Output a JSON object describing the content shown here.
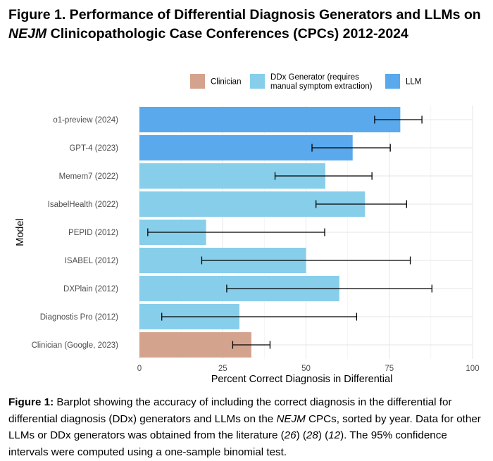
{
  "figure_title": {
    "prefix": "Figure 1. Performance of Differential Diagnosis Generators and LLMs on",
    "italic": "NEJM",
    "suffix": " Clinicopathologic Case Conferences (CPCs) 2012-2024"
  },
  "caption": {
    "label": "Figure 1:",
    "part1": " Barplot showing the accuracy of including the correct diagnosis in the differential for differential diagnosis (DDx) generators and LLMs on the ",
    "italic": "NEJM",
    "part2": " CPCs, sorted by year. Data for other LLMs or DDx generators was obtained from the literature (",
    "ref1": "26",
    "part3": ") (",
    "ref2": "28",
    "part4": ") (",
    "ref3": "12",
    "part5": "). The 95% confidence intervals were computed using a one-sample binomial test."
  },
  "colors": {
    "Clinician": "#d4a38e",
    "DDx": "#87ceeb",
    "LLM": "#59a9ec",
    "grid": "#e6e6e6",
    "text": "#4d4d4d"
  },
  "chart_data": {
    "type": "bar",
    "orientation": "horizontal",
    "xlabel": "Percent Correct Diagnosis in Differential",
    "ylabel": "Model",
    "xlim": [
      0,
      100
    ],
    "xticks": [
      0,
      25,
      50,
      75,
      100
    ],
    "legend": {
      "position": "top",
      "items": [
        {
          "key": "Clinician",
          "lines": [
            "Clinician"
          ]
        },
        {
          "key": "DDx",
          "lines": [
            "DDx Generator (requires",
            "manual symptom extraction)"
          ]
        },
        {
          "key": "LLM",
          "lines": [
            "LLM"
          ]
        }
      ]
    },
    "bars": [
      {
        "label": "o1-preview (2024)",
        "value": 78.3,
        "ci": [
          70.6,
          84.8
        ],
        "group": "LLM"
      },
      {
        "label": "GPT-4 (2023)",
        "value": 64.0,
        "ci": [
          51.8,
          75.3
        ],
        "group": "LLM"
      },
      {
        "label": "Memem7 (2022)",
        "value": 55.8,
        "ci": [
          40.7,
          69.8
        ],
        "group": "DDx"
      },
      {
        "label": "IsabelHealth (2022)",
        "value": 67.7,
        "ci": [
          53.0,
          80.2
        ],
        "group": "DDx"
      },
      {
        "label": "PEPID (2012)",
        "value": 20.0,
        "ci": [
          2.5,
          55.6
        ],
        "group": "DDx"
      },
      {
        "label": "ISABEL (2012)",
        "value": 50.0,
        "ci": [
          18.7,
          81.3
        ],
        "group": "DDx"
      },
      {
        "label": "DXPlain (2012)",
        "value": 60.0,
        "ci": [
          26.2,
          87.8
        ],
        "group": "DDx"
      },
      {
        "label": "Diagnostis Pro (2012)",
        "value": 30.0,
        "ci": [
          6.7,
          65.2
        ],
        "group": "DDx"
      },
      {
        "label": "Clinician (Google, 2023)",
        "value": 33.6,
        "ci": [
          28.0,
          39.2
        ],
        "group": "Clinician"
      }
    ]
  }
}
